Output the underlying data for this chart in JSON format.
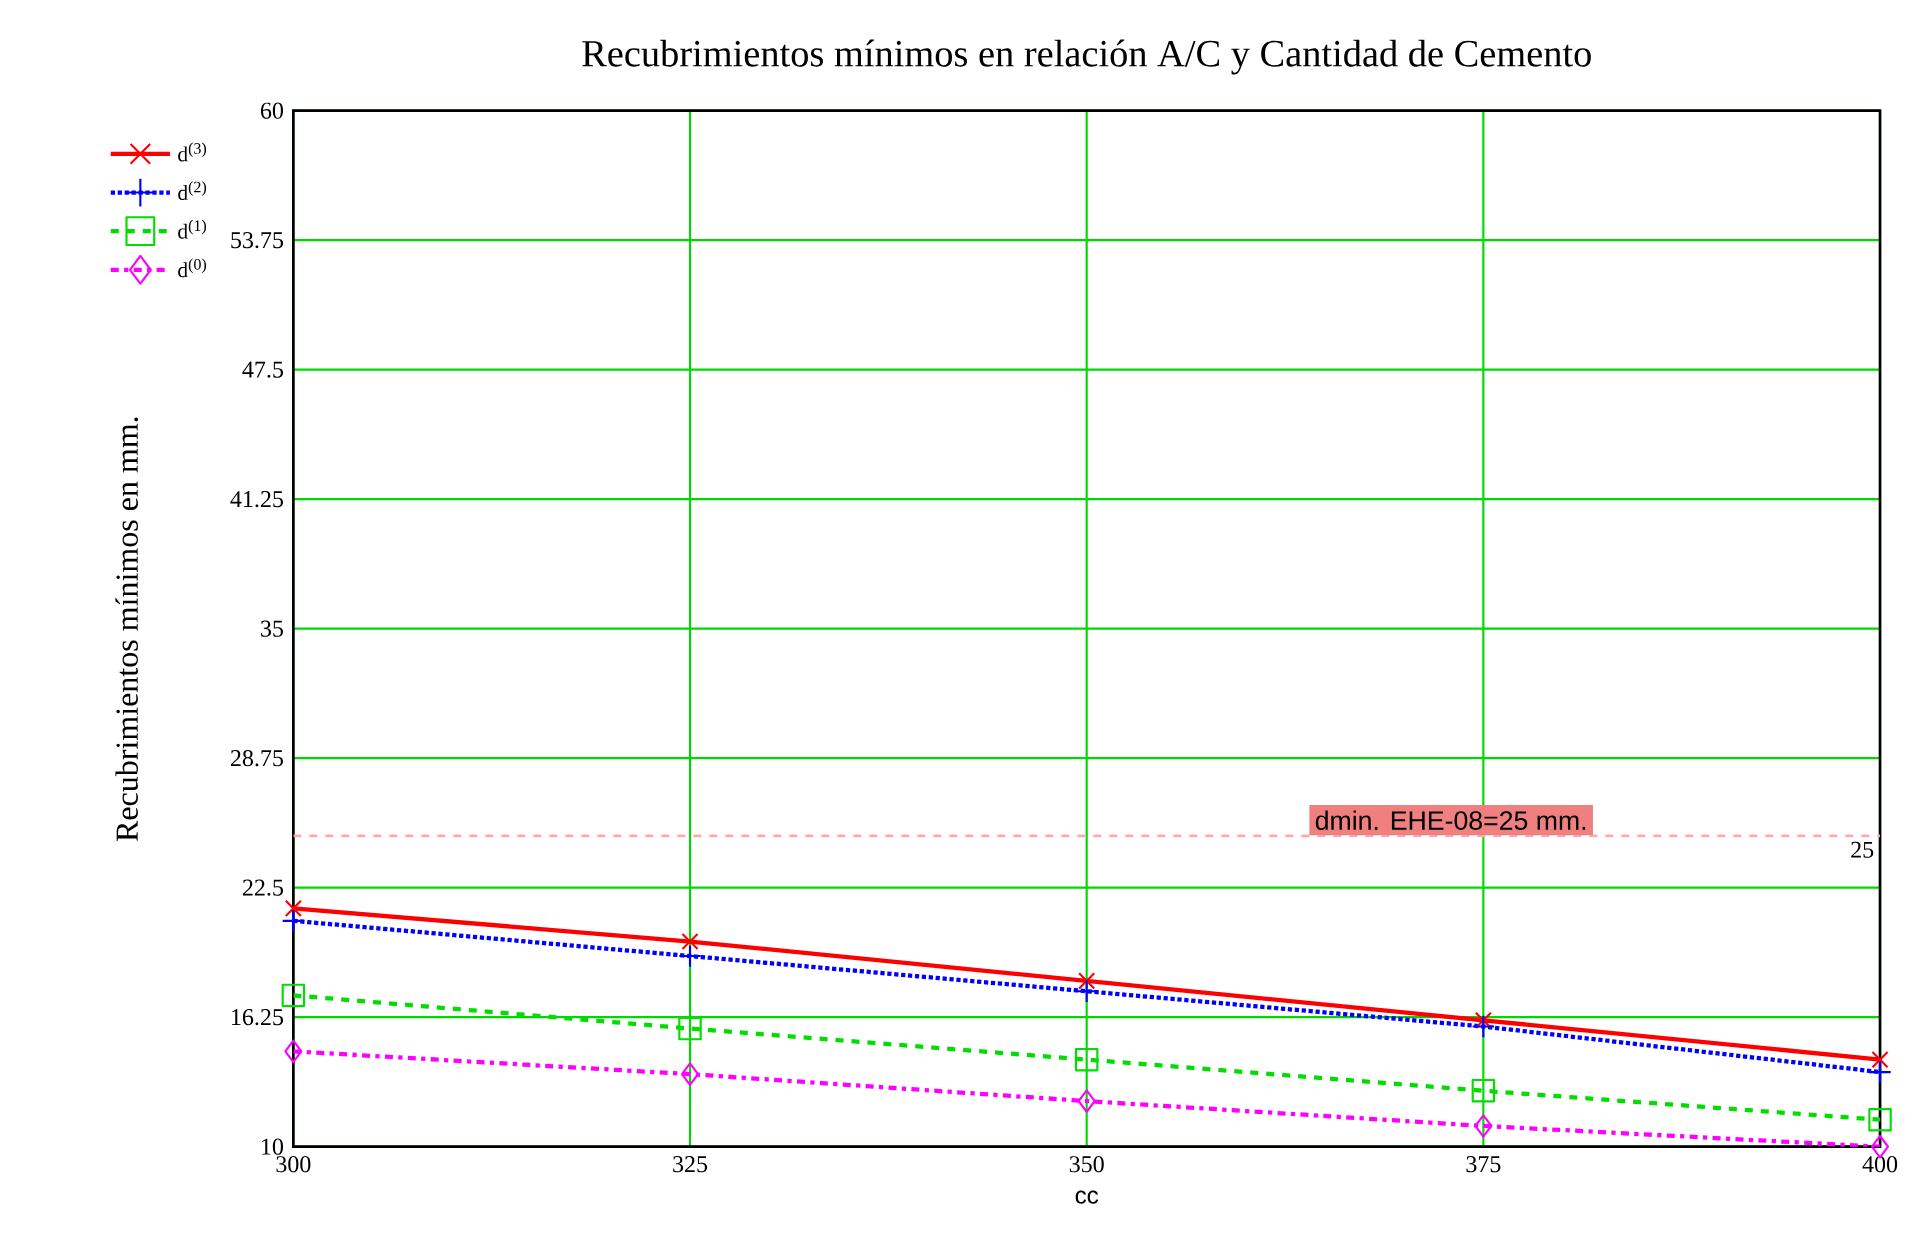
{
  "chart_data": {
    "type": "line",
    "title": "Recubrimientos mínimos en relación A/C y Cantidad de Cemento",
    "xlabel": "cc",
    "ylabel": "Recubrimientos mínimos en mm.",
    "x": [
      300,
      325,
      350,
      375,
      400
    ],
    "series": [
      {
        "name": "d$^{(3)}$",
        "color": "#ff0000",
        "marker": "cross",
        "line_style": "solid",
        "values": [
          21.5,
          19.9,
          18.0,
          16.1,
          14.2
        ]
      },
      {
        "name": "d$^{(2)}$",
        "color": "#0000ff",
        "marker": "plus",
        "line_style": "dotted",
        "values": [
          20.9,
          19.2,
          17.5,
          15.8,
          13.6
        ]
      },
      {
        "name": "d$^{(1)}$",
        "color": "#00dd00",
        "marker": "square",
        "line_style": "dashed",
        "values": [
          17.3,
          15.7,
          14.2,
          12.7,
          11.3
        ]
      },
      {
        "name": "d$^{(0)}$",
        "color": "#ff00ff",
        "marker": "diamond",
        "line_style": "dashdot",
        "values": [
          14.6,
          13.5,
          12.2,
          11.0,
          10.0
        ]
      }
    ],
    "xlim": [
      300,
      400
    ],
    "xticks": [
      300,
      325,
      350,
      375,
      400
    ],
    "ylim": [
      10,
      60
    ],
    "yticks": [
      10,
      16.25,
      22.5,
      28.75,
      35,
      41.25,
      47.5,
      53.75,
      60
    ],
    "ref_lines": [
      {
        "axis": "y",
        "value": 25,
        "label": "dmin. EHE-08=25 mm.",
        "color": "#ffaaaa",
        "line_style": "dashed"
      }
    ],
    "annotations": [
      {
        "text": "25",
        "x": 400,
        "y": 25
      }
    ],
    "grid": true,
    "legend": "left"
  }
}
